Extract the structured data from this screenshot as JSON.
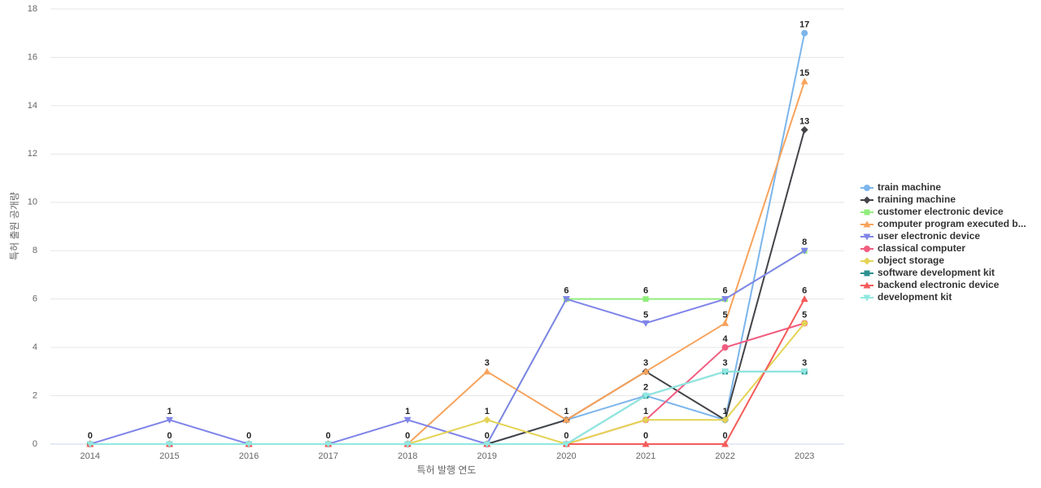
{
  "chart_data": {
    "type": "line",
    "x_label": "특허 발행 연도",
    "y_label": "특허 출원 공개량",
    "categories": [
      "2014",
      "2015",
      "2016",
      "2017",
      "2018",
      "2019",
      "2020",
      "2021",
      "2022",
      "2023"
    ],
    "ylim": [
      0,
      18
    ],
    "yticks": [
      0,
      2,
      4,
      6,
      8,
      10,
      12,
      14,
      16,
      18
    ],
    "grid": true,
    "legend": "right",
    "series": [
      {
        "name": "train machine",
        "color": "#7cb5ec",
        "marker": "circle",
        "values": [
          0,
          0,
          0,
          0,
          0,
          0,
          1,
          2,
          1,
          17
        ]
      },
      {
        "name": "training machine",
        "color": "#434348",
        "marker": "diamond",
        "values": [
          0,
          0,
          0,
          0,
          0,
          0,
          1,
          3,
          1,
          13
        ]
      },
      {
        "name": "customer electronic device",
        "color": "#90ed7d",
        "marker": "square",
        "values": [
          0,
          0,
          0,
          0,
          0,
          0,
          6,
          6,
          6,
          8
        ]
      },
      {
        "name": "computer program executed b...",
        "color": "#f7a35c",
        "marker": "triangle",
        "values": [
          0,
          0,
          0,
          0,
          0,
          3,
          1,
          3,
          5,
          15
        ]
      },
      {
        "name": "user electronic device",
        "color": "#8085e9",
        "marker": "triangle-down",
        "values": [
          0,
          1,
          0,
          0,
          1,
          0,
          6,
          5,
          6,
          8
        ]
      },
      {
        "name": "classical computer",
        "color": "#f15c80",
        "marker": "circle",
        "values": [
          0,
          0,
          0,
          0,
          0,
          0,
          0,
          1,
          4,
          5
        ]
      },
      {
        "name": "object storage",
        "color": "#e4d354",
        "marker": "diamond",
        "values": [
          0,
          0,
          0,
          0,
          0,
          1,
          0,
          1,
          1,
          5
        ]
      },
      {
        "name": "software development kit",
        "color": "#2b908f",
        "marker": "square",
        "values": [
          0,
          0,
          0,
          0,
          0,
          0,
          0,
          2,
          3,
          3
        ]
      },
      {
        "name": "backend electronic device",
        "color": "#f45b5b",
        "marker": "triangle",
        "values": [
          0,
          0,
          0,
          0,
          0,
          0,
          0,
          0,
          0,
          6
        ]
      },
      {
        "name": "development kit",
        "color": "#91e8e1",
        "marker": "triangle-down",
        "values": [
          0,
          0,
          0,
          0,
          0,
          0,
          0,
          2,
          3,
          3
        ]
      }
    ]
  }
}
